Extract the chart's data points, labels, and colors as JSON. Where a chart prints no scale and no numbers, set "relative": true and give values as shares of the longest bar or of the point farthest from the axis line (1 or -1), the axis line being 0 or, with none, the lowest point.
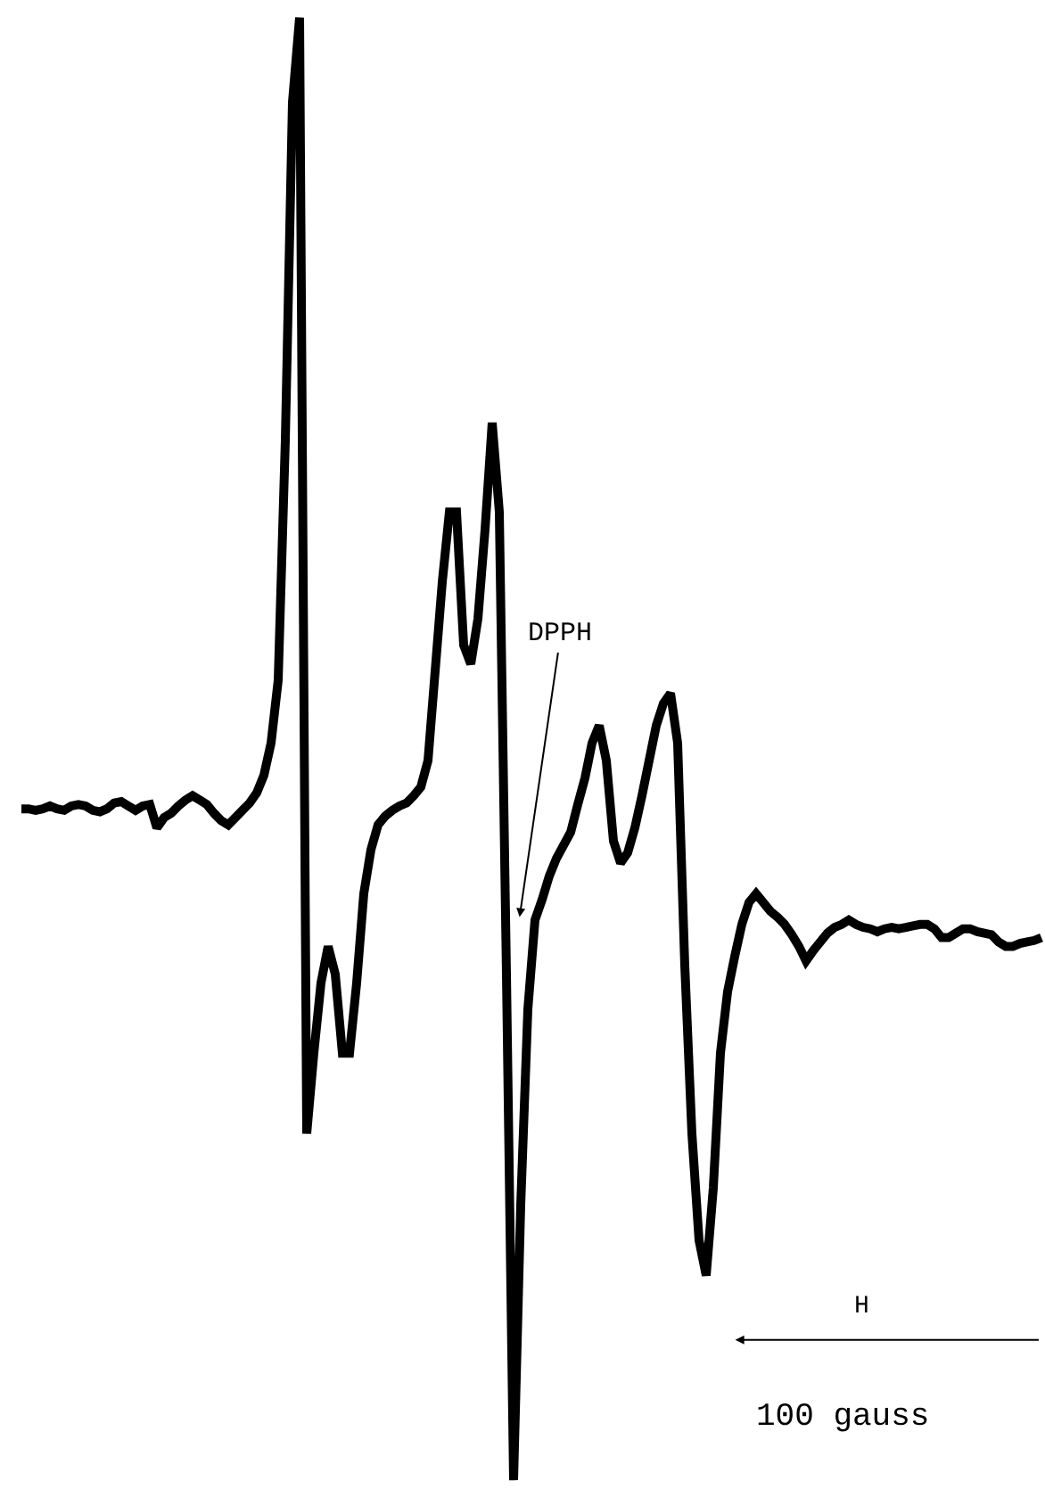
{
  "chart_data": {
    "type": "line",
    "relative": true,
    "color": "#000000",
    "categories": [
      null,
      null,
      null,
      null,
      null,
      null,
      null,
      null,
      null,
      null,
      null,
      null,
      null,
      null,
      null,
      null,
      null,
      null,
      null,
      null,
      null,
      null,
      null,
      null,
      null,
      null,
      null,
      null,
      null,
      null,
      null,
      null,
      null,
      null,
      null,
      null,
      null,
      null,
      null,
      null,
      null,
      null,
      null,
      null,
      null,
      null,
      null,
      null,
      null,
      null,
      null,
      null,
      null,
      null,
      null,
      null,
      null,
      null,
      null,
      null,
      null,
      null,
      null,
      null,
      null,
      null,
      null,
      null,
      null,
      null,
      null,
      null,
      null,
      null,
      null,
      null,
      null,
      null,
      null,
      null,
      null,
      null,
      null,
      null,
      null,
      null,
      null,
      null,
      null,
      null,
      null,
      null,
      null,
      null,
      null,
      null,
      null,
      null,
      null,
      null,
      null,
      null,
      null,
      null,
      null,
      null,
      null,
      null,
      null,
      null,
      null,
      null,
      null,
      null,
      null,
      null,
      null,
      null,
      null,
      null,
      null,
      null,
      null,
      null,
      null,
      null,
      null,
      null,
      null,
      null,
      null,
      null,
      null,
      null,
      null,
      null,
      null,
      null,
      null,
      null,
      null,
      null,
      null,
      null
    ],
    "values": [
      0.459,
      0.459,
      0.458,
      0.459,
      0.461,
      0.459,
      0.458,
      0.461,
      0.462,
      0.461,
      0.458,
      0.457,
      0.459,
      0.463,
      0.464,
      0.461,
      0.458,
      0.461,
      0.462,
      0.446,
      0.453,
      0.456,
      0.461,
      0.465,
      0.468,
      0.465,
      0.462,
      0.456,
      0.451,
      0.448,
      0.453,
      0.458,
      0.463,
      0.47,
      0.482,
      0.504,
      0.547,
      0.711,
      0.942,
      1,
      0.237,
      0.292,
      0.34,
      0.365,
      0.346,
      0.292,
      0.292,
      0.34,
      0.401,
      0.431,
      0.448,
      0.454,
      0.458,
      0.461,
      0.463,
      0.468,
      0.474,
      0.492,
      0.553,
      0.614,
      0.662,
      0.662,
      0.571,
      0.558,
      0.589,
      0.65,
      0.723,
      0.662,
      0.346,
      0,
      0.188,
      0.322,
      0.383,
      0.397,
      0.413,
      0.425,
      0.434,
      0.443,
      0.462,
      0.48,
      0.504,
      0.516,
      0.492,
      0.437,
      0.422,
      0.429,
      0.446,
      0.468,
      0.492,
      0.516,
      0.531,
      0.538,
      0.504,
      0.352,
      0.237,
      0.164,
      0.14,
      0.2,
      0.292,
      0.334,
      0.358,
      0.38,
      0.395,
      0.401,
      0.395,
      0.389,
      0.385,
      0.38,
      0.373,
      0.365,
      0.355,
      0.362,
      0.368,
      0.374,
      0.378,
      0.38,
      0.383,
      0.38,
      0.378,
      0.377,
      0.375,
      0.377,
      0.378,
      0.377,
      0.378,
      0.379,
      0.38,
      0.38,
      0.377,
      0.371,
      0.371,
      0.374,
      0.377,
      0.377,
      0.375,
      0.374,
      0.373,
      0.368,
      0.365,
      0.365,
      0.367,
      0.368,
      0.369,
      0.371
    ],
    "annotations": [
      "DPPH",
      "H",
      "100 gauss"
    ]
  }
}
